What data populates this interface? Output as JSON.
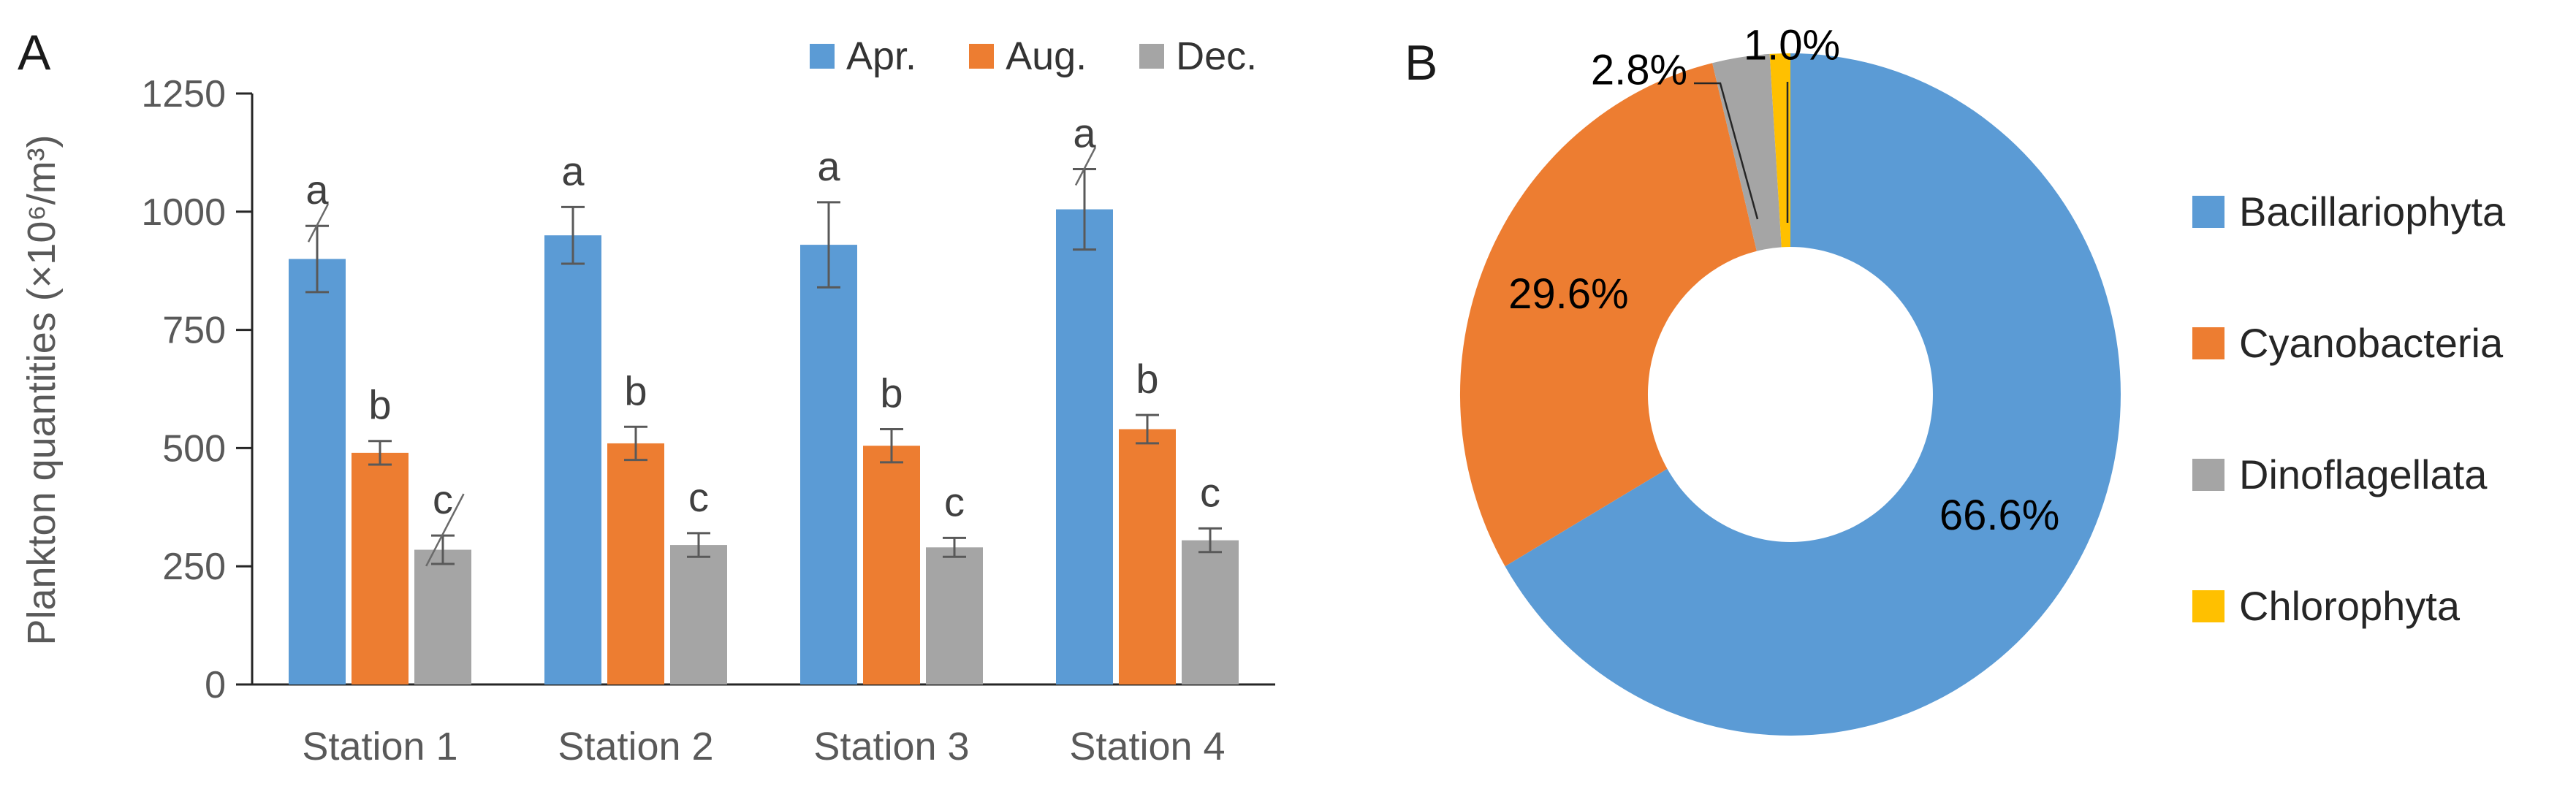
{
  "panelA": {
    "label": "A"
  },
  "panelB": {
    "label": "B"
  },
  "chart_data": [
    {
      "type": "bar",
      "panel": "A",
      "title": "",
      "xlabel": "",
      "ylabel": "Plankton quantities (×10⁶/m³)",
      "ylim": [
        0,
        1250
      ],
      "yticks": [
        0,
        250,
        500,
        750,
        1000,
        1250
      ],
      "grid": false,
      "legend_position": "top-right",
      "categories": [
        "Station 1",
        "Station 2",
        "Station 3",
        "Station 4"
      ],
      "series": [
        {
          "name": "Apr.",
          "color": "#5B9BD5",
          "values": [
            900,
            950,
            930,
            1005
          ],
          "errors": [
            70,
            60,
            90,
            85
          ],
          "sig_letters": [
            "a",
            "a",
            "a",
            "a"
          ]
        },
        {
          "name": "Aug.",
          "color": "#ED7D31",
          "values": [
            490,
            510,
            505,
            540
          ],
          "errors": [
            25,
            35,
            35,
            30
          ],
          "sig_letters": [
            "b",
            "b",
            "b",
            "b"
          ]
        },
        {
          "name": "Dec.",
          "color": "#A5A5A5",
          "values": [
            285,
            295,
            290,
            305
          ],
          "errors": [
            30,
            25,
            20,
            25
          ],
          "sig_letters": [
            "c",
            "c",
            "c",
            "c"
          ]
        }
      ]
    },
    {
      "type": "pie",
      "panel": "B",
      "donut": true,
      "start_angle_deg": 0,
      "direction": "clockwise",
      "legend_position": "right",
      "slices": [
        {
          "name": "Bacillariophyta",
          "value": 66.6,
          "label": "66.6%",
          "color": "#5B9BD5",
          "label_placement": "inside"
        },
        {
          "name": "Cyanobacteria",
          "value": 29.6,
          "label": "29.6%",
          "color": "#ED7D31",
          "label_placement": "inside"
        },
        {
          "name": "Dinoflagellata",
          "value": 2.8,
          "label": "2.8%",
          "color": "#A5A5A5",
          "label_placement": "outside"
        },
        {
          "name": "Chlorophyta",
          "value": 1.0,
          "label": "1.0%",
          "color": "#FFC000",
          "label_placement": "outside"
        }
      ]
    }
  ]
}
